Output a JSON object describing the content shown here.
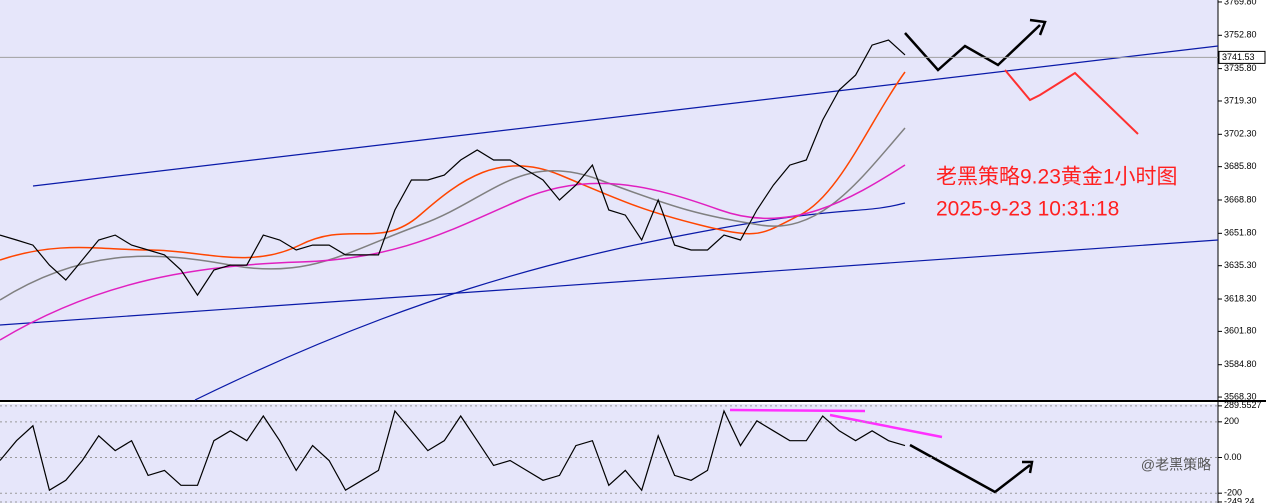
{
  "chart_data": [
    {
      "type": "line",
      "title": "老黑策略9.23黄金1小时图",
      "subtitle": "2025-9-23 10:31:18",
      "current_price": {
        "value": 3741.53,
        "label": "3741.53"
      },
      "watermark": "@老黑策略",
      "series": [
        {
          "color": "#000000",
          "values": [
            3650.9,
            3648.4,
            3645.8,
            3635.6,
            3628.0,
            3638.2,
            3648.4,
            3650.9,
            3645.8,
            3643.3,
            3640.8,
            3633.1,
            3620.3,
            3633.1,
            3635.6,
            3635.6,
            3650.9,
            3648.4,
            3643.3,
            3645.8,
            3645.8,
            3640.8,
            3640.8,
            3640.8,
            3663.7,
            3679.0,
            3679.0,
            3681.5,
            3689.2,
            3694.3,
            3689.2,
            3689.2,
            3684.1,
            3679.0,
            3668.8,
            3676.4,
            3686.6,
            3663.7,
            3661.1,
            3648.4,
            3668.8,
            3645.8,
            3643.3,
            3643.3,
            3650.9,
            3648.4,
            3663.7,
            3676.4,
            3686.6,
            3689.2,
            3709.6,
            3724.9,
            3732.5,
            3747.8,
            3750.4,
            3742.8
          ]
        }
      ],
      "ylim": [
        3566.8,
        3770.8
      ],
      "yticks": [
        {
          "value": 3769.8,
          "label": "3769.80"
        },
        {
          "value": 3752.8,
          "label": "3752.80"
        },
        {
          "value": 3735.8,
          "label": "3735.80"
        },
        {
          "value": 3719.3,
          "label": "3719.30"
        },
        {
          "value": 3702.3,
          "label": "3702.30"
        },
        {
          "value": 3685.8,
          "label": "3685.80"
        },
        {
          "value": 3668.8,
          "label": "3668.80"
        },
        {
          "value": 3651.8,
          "label": "3651.80"
        },
        {
          "value": 3635.3,
          "label": "3635.30"
        },
        {
          "value": 3618.3,
          "label": "3618.30"
        },
        {
          "value": 3601.8,
          "label": "3601.80"
        },
        {
          "value": 3584.8,
          "label": "3584.80"
        },
        {
          "value": 3568.3,
          "label": "3568.30"
        }
      ]
    },
    {
      "type": "line",
      "series": [
        {
          "color": "#000000",
          "values": [
            -17,
            94,
            178,
            -183,
            -128,
            -17,
            122,
            39,
            94,
            -100,
            -72,
            -156,
            -156,
            94,
            150,
            94,
            233,
            94,
            -72,
            67,
            -17,
            -183,
            -128,
            -72,
            261,
            150,
            39,
            94,
            233,
            94,
            -44,
            -17,
            -72,
            -128,
            -100,
            67,
            94,
            -156,
            -72,
            -183,
            122,
            -100,
            -128,
            -72,
            261,
            67,
            206,
            150,
            94,
            94,
            233,
            150,
            94,
            150,
            94,
            67
          ]
        }
      ],
      "ylim": [
        -255,
        300
      ],
      "yticks": [
        289.5527,
        200,
        {
          "value": 0,
          "label": "0.00"
        },
        -200,
        -249.24
      ]
    }
  ]
}
